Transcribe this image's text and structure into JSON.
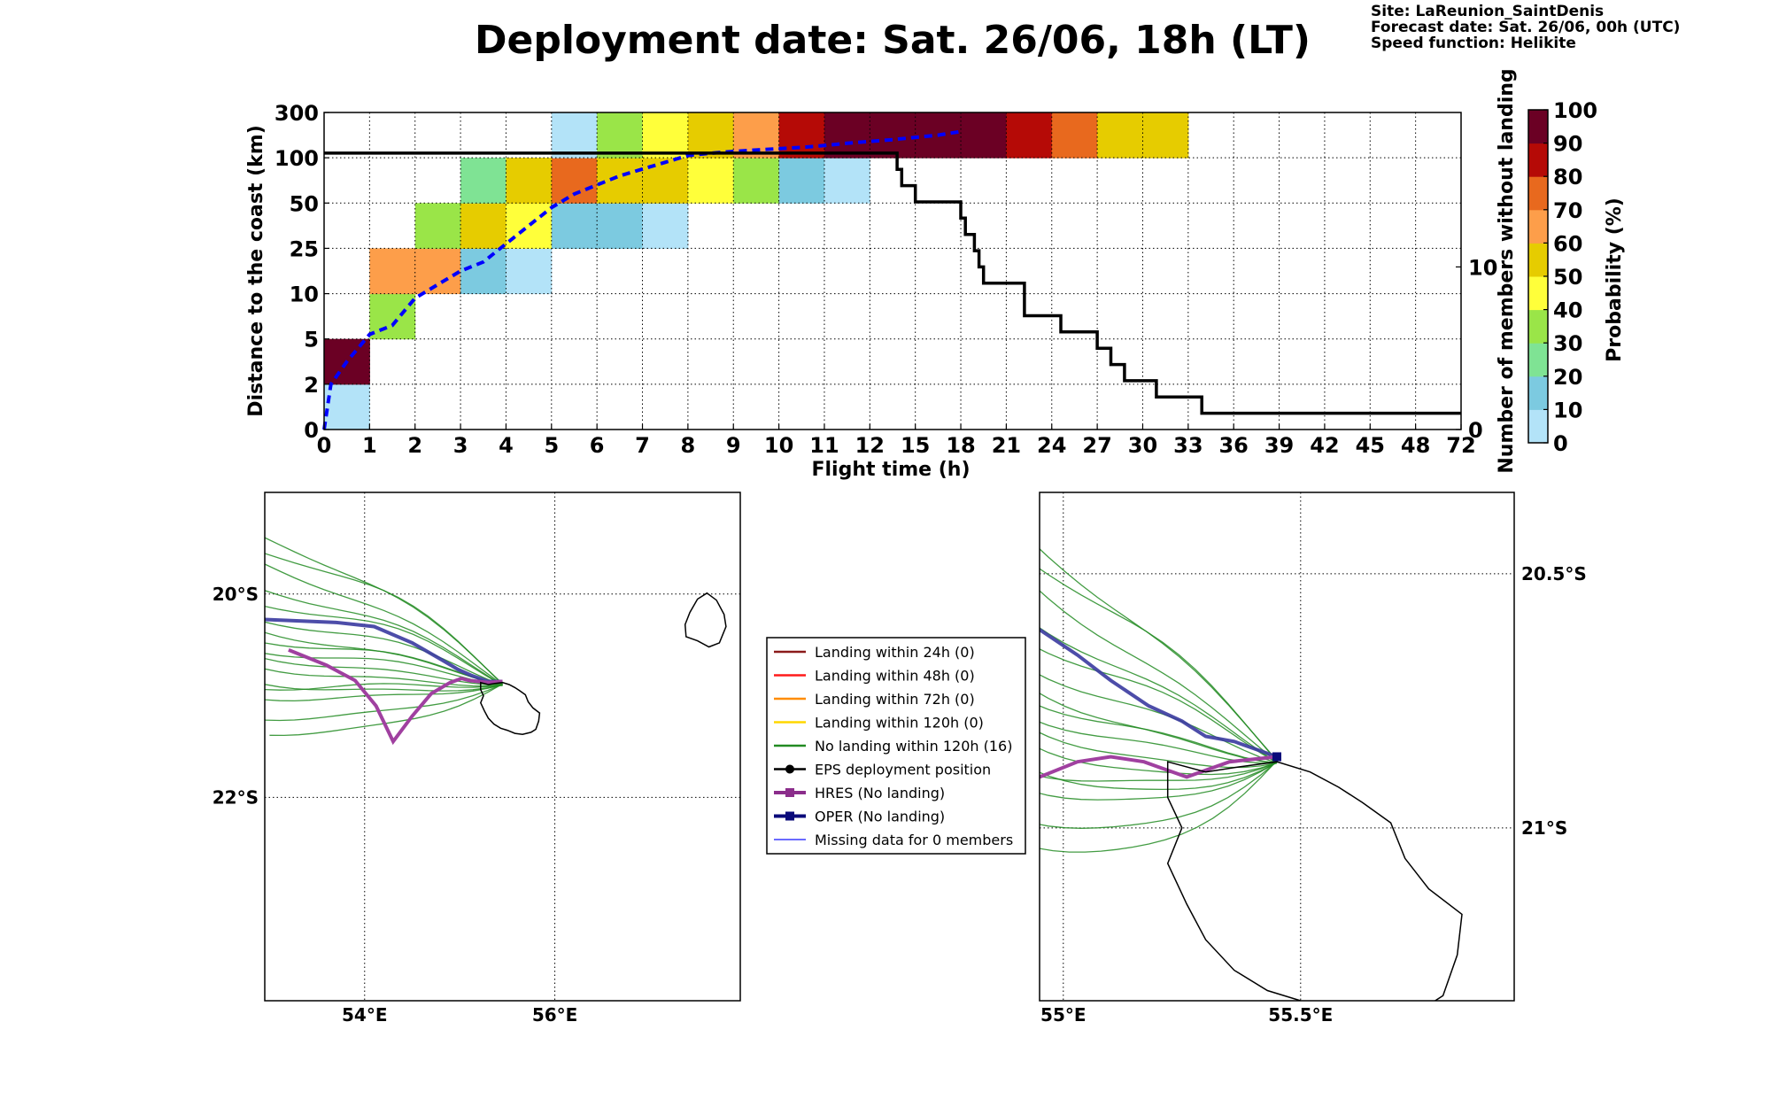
{
  "header": {
    "title": "Deployment date: Sat. 26/06, 18h (LT)",
    "site": "Site: LaReunion_SaintDenis",
    "forecast": "Forecast date: Sat. 26/06, 00h (UTC)",
    "speed": "Speed function: Helikite"
  },
  "chart_data": [
    {
      "type": "heatmap",
      "xlabel": "Flight time (h)",
      "ylabel": "Distance to the coast (km)",
      "ylabel_right": "Number of members without landing",
      "colorbar_label": "Probability (%)",
      "x_ticks": [
        "0",
        "1",
        "2",
        "3",
        "4",
        "5",
        "6",
        "7",
        "8",
        "9",
        "10",
        "11",
        "12",
        "15",
        "18",
        "21",
        "24",
        "27",
        "30",
        "33",
        "36",
        "39",
        "42",
        "45",
        "48",
        "72"
      ],
      "y_ticks": [
        "0",
        "2",
        "5",
        "10",
        "25",
        "50",
        "100",
        "300"
      ],
      "right_ticks": [
        {
          "value": 0,
          "label": "0"
        },
        {
          "value": 10,
          "label": "10"
        }
      ],
      "right_ylim": [
        0,
        19.5
      ],
      "colorbar_ticks": [
        "0",
        "10",
        "20",
        "30",
        "40",
        "50",
        "60",
        "70",
        "80",
        "90",
        "100"
      ],
      "colorbar_colors": [
        "#b3e3f8",
        "#7ccae0",
        "#7fe394",
        "#9ae548",
        "#ffff3a",
        "#e6cc00",
        "#fd9e4a",
        "#e8691e",
        "#b50a06",
        "#6b0024"
      ],
      "cells": [
        {
          "x": 0,
          "y": 0,
          "p": 0
        },
        {
          "x": 0,
          "y": 1,
          "p": 95
        },
        {
          "x": 1,
          "y": 2,
          "p": 30
        },
        {
          "x": 1,
          "y": 3,
          "p": 65
        },
        {
          "x": 2,
          "y": 3,
          "p": 65
        },
        {
          "x": 2,
          "y": 4,
          "p": 35
        },
        {
          "x": 3,
          "y": 3,
          "p": 15
        },
        {
          "x": 3,
          "y": 4,
          "p": 55
        },
        {
          "x": 3,
          "y": 5,
          "p": 25
        },
        {
          "x": 4,
          "y": 3,
          "p": 5
        },
        {
          "x": 4,
          "y": 4,
          "p": 45
        },
        {
          "x": 4,
          "y": 5,
          "p": 55
        },
        {
          "x": 5,
          "y": 4,
          "p": 15
        },
        {
          "x": 5,
          "y": 5,
          "p": 75
        },
        {
          "x": 5,
          "y": 6,
          "p": 5
        },
        {
          "x": 6,
          "y": 4,
          "p": 15
        },
        {
          "x": 6,
          "y": 5,
          "p": 55
        },
        {
          "x": 6,
          "y": 6,
          "p": 35
        },
        {
          "x": 7,
          "y": 4,
          "p": 5
        },
        {
          "x": 7,
          "y": 5,
          "p": 55
        },
        {
          "x": 7,
          "y": 6,
          "p": 45
        },
        {
          "x": 8,
          "y": 5,
          "p": 45
        },
        {
          "x": 8,
          "y": 6,
          "p": 55
        },
        {
          "x": 9,
          "y": 5,
          "p": 35
        },
        {
          "x": 9,
          "y": 6,
          "p": 65
        },
        {
          "x": 10,
          "y": 5,
          "p": 15
        },
        {
          "x": 10,
          "y": 6,
          "p": 85
        },
        {
          "x": 11,
          "y": 5,
          "p": 5
        },
        {
          "x": 11,
          "y": 6,
          "p": 95
        },
        {
          "x": 12,
          "y": 6,
          "p": 95
        },
        {
          "x": 13,
          "y": 6,
          "p": 95
        },
        {
          "x": 14,
          "y": 6,
          "p": 95
        },
        {
          "x": 15,
          "y": 6,
          "p": 85
        },
        {
          "x": 16,
          "y": 6,
          "p": 75
        },
        {
          "x": 17,
          "y": 6,
          "p": 55
        },
        {
          "x": 18,
          "y": 6,
          "p": 55
        }
      ],
      "median_distance": {
        "x_bins": [
          0,
          0.15,
          0.5,
          1.0,
          1.5,
          2.0,
          2.5,
          3.0,
          3.5,
          4.0,
          4.5,
          5.0,
          5.5,
          6.0,
          6.5,
          7.0,
          7.5,
          8.0,
          8.5,
          9.0,
          9.5,
          10.0,
          10.5,
          11.0,
          11.5,
          12.0,
          12.5,
          13.0,
          13.5,
          14.0
        ],
        "y_bins": [
          0,
          1.0,
          1.5,
          2.1,
          2.3,
          2.9,
          3.2,
          3.5,
          3.7,
          4.1,
          4.5,
          4.9,
          5.2,
          5.4,
          5.6,
          5.75,
          5.9,
          6.05,
          6.1,
          6.14,
          6.17,
          6.2,
          6.23,
          6.27,
          6.32,
          6.36,
          6.4,
          6.45,
          6.5,
          6.58
        ]
      },
      "members_without_landing": {
        "x_bins": [
          0,
          12.6,
          12.6,
          12.7,
          12.7,
          13.0,
          13.0,
          14.0,
          14.0,
          14.1,
          14.1,
          14.3,
          14.3,
          14.4,
          14.4,
          14.5,
          14.5,
          15.4,
          15.4,
          16.2,
          16.2,
          17.0,
          17.0,
          17.3,
          17.3,
          17.6,
          17.6,
          18.3,
          18.3,
          19.3,
          19.3,
          25
        ],
        "values": [
          17,
          17,
          16,
          16,
          15,
          15,
          14,
          14,
          13,
          13,
          12,
          12,
          11,
          11,
          10,
          10,
          9,
          9,
          7,
          7,
          6,
          6,
          5,
          5,
          4,
          4,
          3,
          3,
          2,
          2,
          1,
          1
        ]
      }
    },
    {
      "type": "scatter",
      "map_id": "wide",
      "x_ticks": [
        "54°E",
        "56°E"
      ],
      "y_ticks": [
        "20°S",
        "22°S"
      ],
      "lon_range": [
        52.95,
        57.95
      ],
      "lat_range": [
        -19.0,
        -24.0
      ],
      "tick_lons": [
        54.0,
        56.0
      ],
      "tick_lats": [
        -20.0,
        -22.0
      ]
    },
    {
      "type": "scatter",
      "map_id": "zoom",
      "x_ticks": [
        "55°E",
        "55.5°E"
      ],
      "y_ticks": [
        "20.5°S",
        "21°S"
      ],
      "lon_range": [
        54.95,
        55.95
      ],
      "lat_range": [
        -20.34,
        -21.34
      ],
      "tick_lons": [
        55.0,
        55.5
      ],
      "tick_lats": [
        -20.5,
        -21.0
      ]
    }
  ],
  "legend": {
    "items": [
      {
        "label": "Landing within 24h (0)",
        "color": "#8b1a1a",
        "kind": "line"
      },
      {
        "label": "Landing within 48h (0)",
        "color": "#ff1a1a",
        "kind": "line"
      },
      {
        "label": "Landing within 72h (0)",
        "color": "#ff8c00",
        "kind": "line"
      },
      {
        "label": "Landing within 120h (0)",
        "color": "#ffd700",
        "kind": "line"
      },
      {
        "label": "No landing within 120h (16)",
        "color": "#228b22",
        "kind": "line"
      },
      {
        "label": "EPS deployment position",
        "color": "#000000",
        "kind": "dot"
      },
      {
        "label": "HRES (No landing)",
        "color": "#8b2d8b",
        "kind": "square"
      },
      {
        "label": "OPER (No landing)",
        "color": "#0a0a7a",
        "kind": "square"
      },
      {
        "label": "Missing data for 0 members",
        "color": "#3a3aff",
        "kind": "thin"
      }
    ]
  },
  "colors": {
    "median": "#0000ff",
    "members": "#000000",
    "ens": "#228b22",
    "hres": "#a040a0",
    "oper": "#3a3aa0"
  }
}
